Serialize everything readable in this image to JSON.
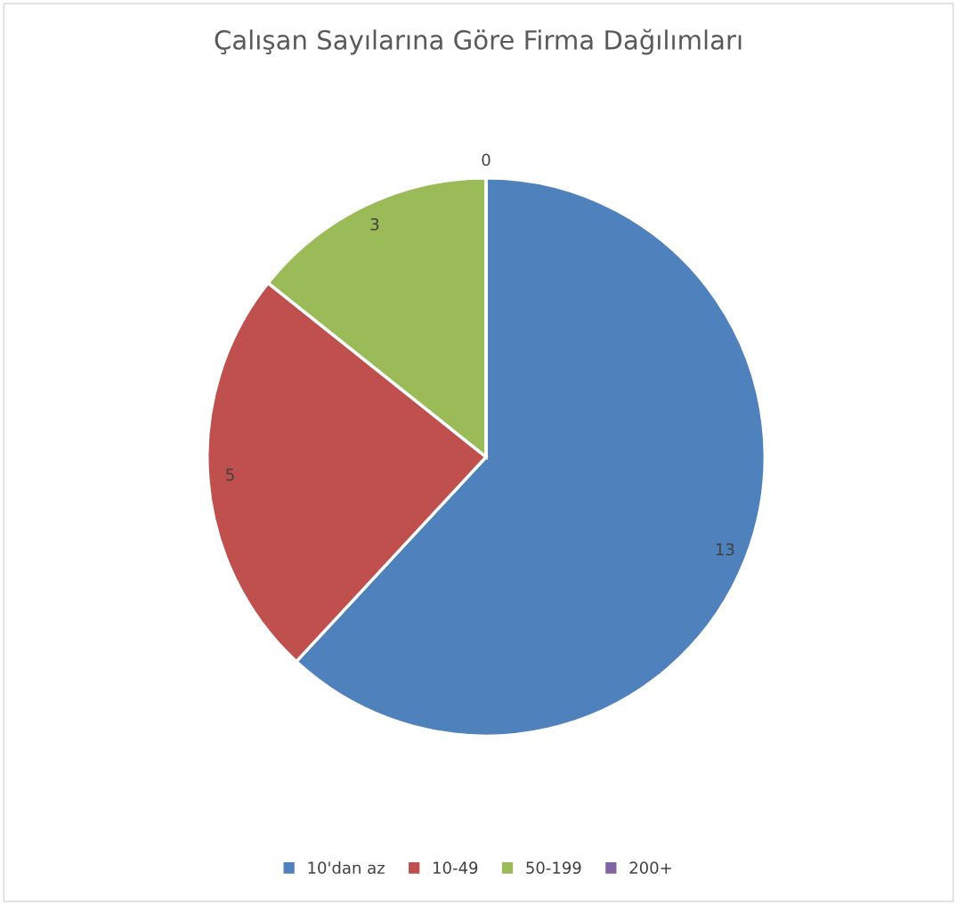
{
  "chart_data": {
    "type": "pie",
    "title": "Çalışan Sayılarına Göre Firma Dağılımları",
    "categories": [
      "10'dan az",
      "10-49",
      "50-199",
      "200+"
    ],
    "values": [
      13,
      5,
      3,
      0
    ],
    "colors": [
      "#4f81bd",
      "#c0504d",
      "#9bbb59",
      "#8064a2"
    ],
    "value_labels": [
      "13",
      "5",
      "3",
      "0"
    ],
    "legend": "bottom"
  }
}
